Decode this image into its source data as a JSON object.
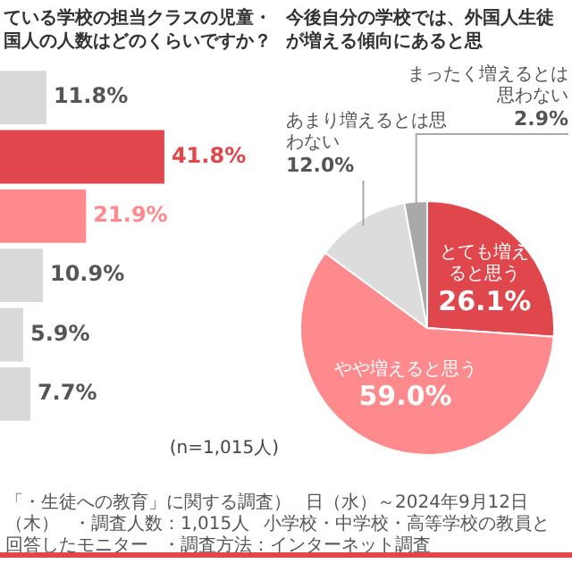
{
  "chart_data": [
    {
      "type": "bar",
      "orientation": "horizontal",
      "title": "ている学校の担当クラスの児童・国人の人数はどのくらいですか？",
      "categories": [
        null,
        null,
        null,
        null,
        null,
        null
      ],
      "values": [
        11.8,
        41.8,
        21.9,
        10.9,
        5.9,
        7.7
      ],
      "colors": [
        "#d9d9d9",
        "#e0474c",
        "#ff8a8e",
        "#d9d9d9",
        "#d9d9d9",
        "#d9d9d9"
      ],
      "value_labels": [
        "11.8%",
        "41.8%",
        "21.9%",
        "10.9%",
        "5.9%",
        "7.7%"
      ],
      "annotations": [
        "(n=1,015人)"
      ],
      "tick_labels": false,
      "legend": false
    },
    {
      "type": "pie",
      "title": "今後自分の学校では、外国人生徒が増える傾向にあると思",
      "categories": [
        "とても増えると思う",
        "やや増えると思う",
        "あまり増えるとは思わない",
        "まったく増えるとは思わない"
      ],
      "values": [
        26.1,
        59.0,
        12.0,
        2.9
      ],
      "colors": [
        "#e0474c",
        "#ff8a8e",
        "#dcdcdc",
        "#a9a9a9"
      ],
      "value_labels": [
        "26.1%",
        "59.0%",
        "12.0%",
        "2.9%"
      ],
      "legend": false,
      "annotations": [
        "「・生徒への教育」に関する調査）",
        "日（水）～2024年9月12日（木）",
        "・調査人数：1,015人",
        "小学校・中学校・高等学校の教員と回答したモニター",
        "・調査方法：インターネット調査"
      ]
    }
  ]
}
